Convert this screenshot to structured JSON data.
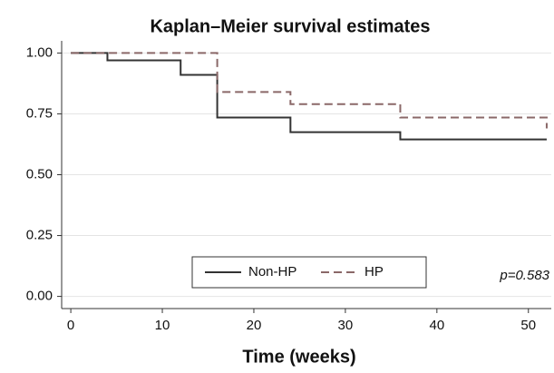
{
  "chart_data": {
    "type": "step",
    "title": "Kaplan–Meier survival estimates",
    "x_label": "Time (weeks)",
    "annotation": "p=0.583",
    "xlim": [
      -1,
      52.5
    ],
    "xticks": [
      0,
      10,
      20,
      30,
      40,
      50
    ],
    "ylim": [
      -0.05,
      1.05
    ],
    "yticks": [
      {
        "value": 0,
        "label": "0.00"
      },
      {
        "value": 0.25,
        "label": "0.25"
      },
      {
        "value": 0.5,
        "label": "0.50"
      },
      {
        "value": 0.75,
        "label": "0.75"
      },
      {
        "value": 1,
        "label": "1.00"
      }
    ],
    "grid": true,
    "series": [
      {
        "name": "Non-HP",
        "color": "#333333",
        "dash": false,
        "x": [
          0,
          4,
          12,
          16,
          24,
          36,
          52
        ],
        "values": [
          1,
          0.97,
          0.91,
          0.735,
          0.675,
          0.645,
          0.645
        ]
      },
      {
        "name": "HP",
        "color": "#8a6868",
        "dash": true,
        "x": [
          0,
          16,
          24,
          36,
          52
        ],
        "values": [
          1,
          0.84,
          0.79,
          0.735,
          0.69
        ]
      }
    ]
  }
}
